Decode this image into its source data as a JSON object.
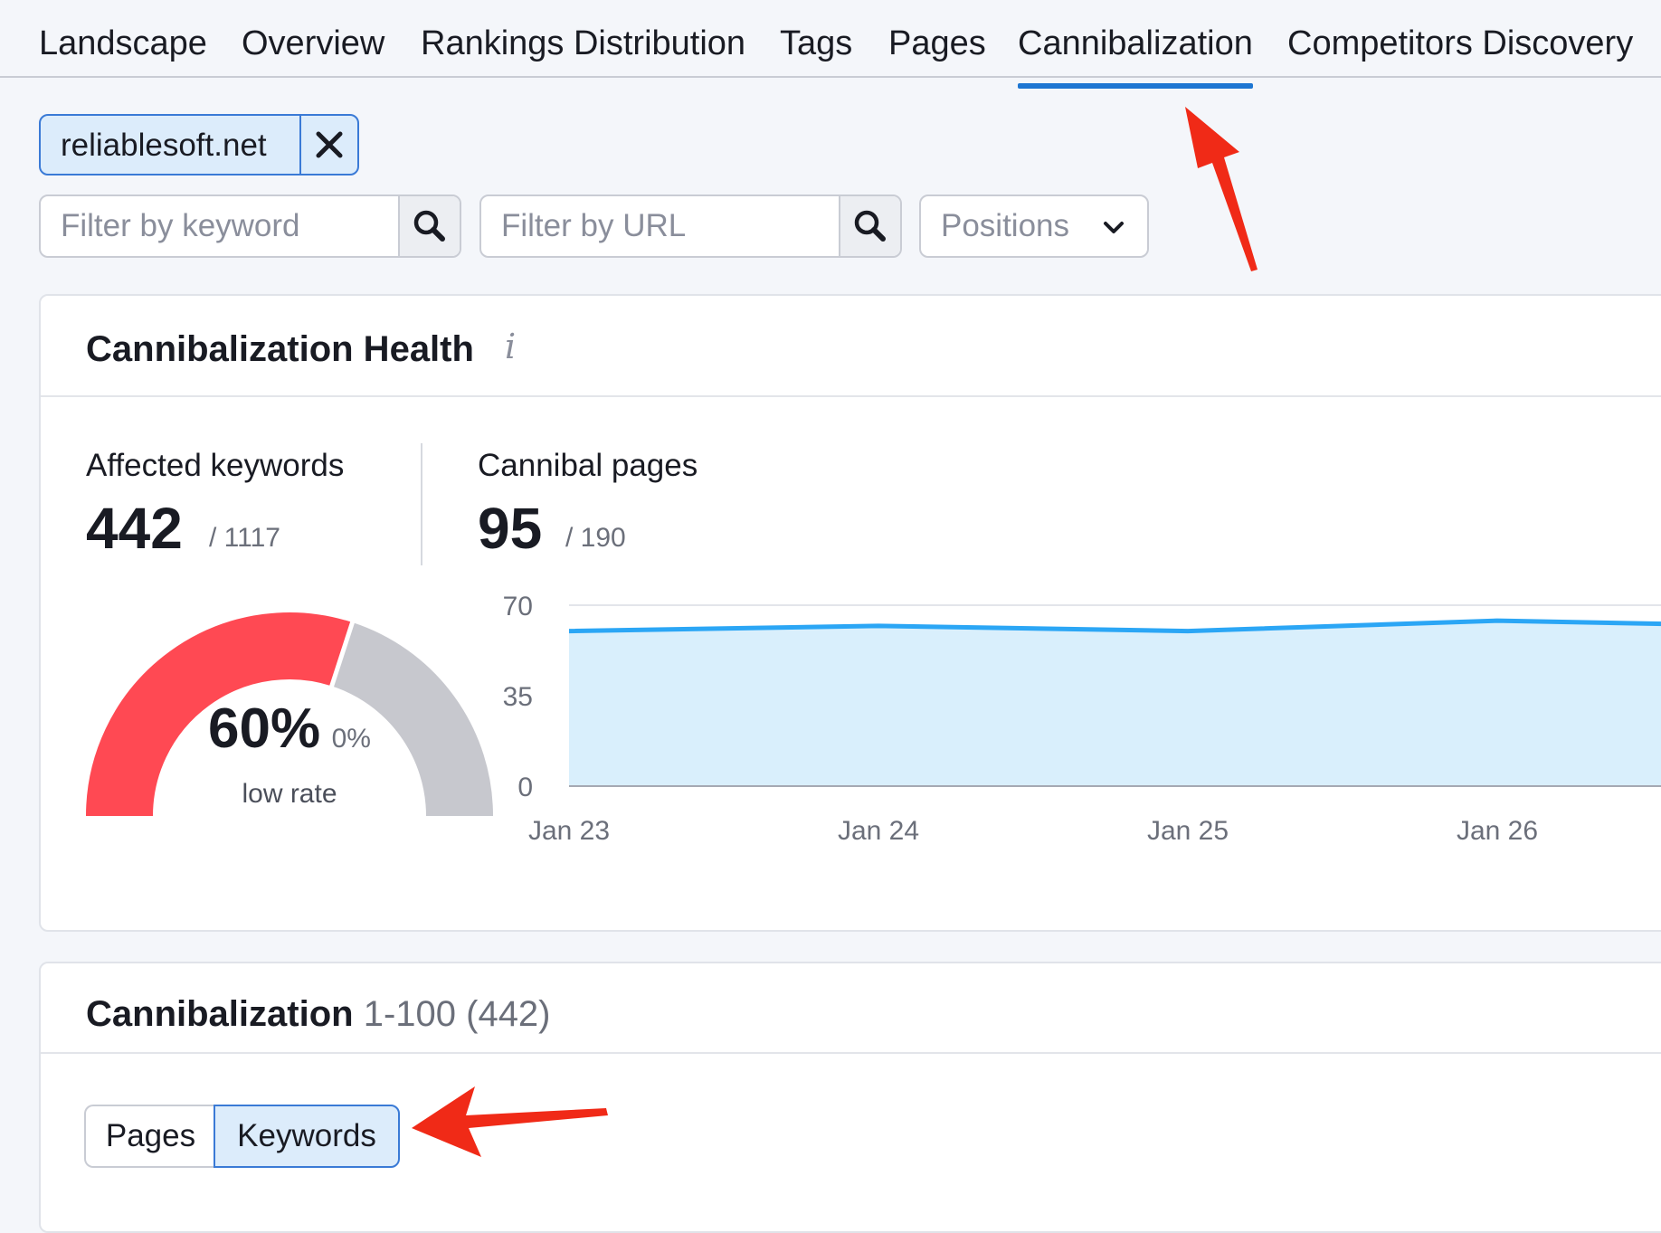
{
  "tabs": [
    {
      "label": "Landscape"
    },
    {
      "label": "Overview"
    },
    {
      "label": "Rankings Distribution"
    },
    {
      "label": "Tags"
    },
    {
      "label": "Pages"
    },
    {
      "label": "Cannibalization",
      "active": true
    },
    {
      "label": "Competitors Discovery"
    }
  ],
  "domain_chip": {
    "label": "reliablesoft.net"
  },
  "filters": {
    "keyword_placeholder": "Filter by keyword",
    "url_placeholder": "Filter by URL",
    "positions_label": "Positions"
  },
  "health": {
    "title": "Cannibalization Health",
    "info_glyph": "i",
    "affected_label": "Affected keywords",
    "affected_value": "442",
    "affected_total": "/ 1117",
    "pages_label": "Cannibal pages",
    "pages_value": "95",
    "pages_total": "/ 190",
    "gauge": {
      "value_label": "60%",
      "secondary_label": "0%",
      "caption": "low rate",
      "fraction": 0.6,
      "colors": {
        "filled": "#ff4953",
        "empty": "#c7c8ce"
      }
    }
  },
  "chart_data": {
    "type": "area",
    "x": [
      "Jan 23",
      "Jan 24",
      "Jan 25",
      "Jan 26"
    ],
    "series": [
      {
        "values": [
          60,
          62,
          60,
          64
        ]
      }
    ],
    "yticks": [
      "70",
      "35",
      "0"
    ],
    "ylim": [
      0,
      70
    ],
    "grid": true,
    "colors": {
      "line": "#2ba6f5",
      "fill": "#d9effc"
    }
  },
  "list": {
    "title": "Cannibalization",
    "range": "1-100 (442)",
    "toggle": [
      {
        "label": "Pages"
      },
      {
        "label": "Keywords",
        "active": true
      }
    ]
  }
}
